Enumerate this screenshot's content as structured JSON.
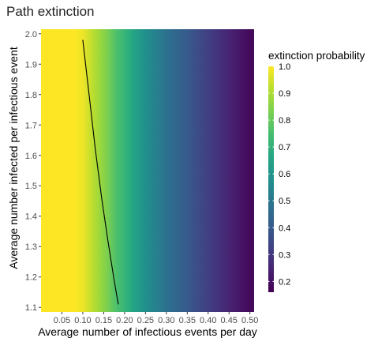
{
  "chart_data": {
    "type": "heatmap",
    "title": "Path extinction",
    "xlabel": "Average number of infectious events per day",
    "ylabel": "Average number infected per infectious event",
    "xlim": [
      0.0,
      0.51
    ],
    "ylim": [
      1.085,
      2.015
    ],
    "x_ticks": [
      "0.05",
      "0.10",
      "0.15",
      "0.20",
      "0.25",
      "0.30",
      "0.35",
      "0.40",
      "0.45",
      "0.50"
    ],
    "y_ticks": [
      "1.1",
      "1.2",
      "1.3",
      "1.4",
      "1.5",
      "1.6",
      "1.7",
      "1.8",
      "1.9",
      "2.0"
    ],
    "grid": false,
    "colorscale": "viridis",
    "value_profile": {
      "x": [
        0.0,
        0.08,
        0.1,
        0.12,
        0.14,
        0.16,
        0.18,
        0.2,
        0.22,
        0.25,
        0.3,
        0.35,
        0.4,
        0.45,
        0.5
      ],
      "value": [
        1.0,
        1.0,
        0.98,
        0.93,
        0.88,
        0.83,
        0.76,
        0.72,
        0.66,
        0.58,
        0.48,
        0.4,
        0.32,
        0.25,
        0.18
      ]
    },
    "contour_line": {
      "x": [
        0.1,
        0.115,
        0.13,
        0.145,
        0.16,
        0.175,
        0.185
      ],
      "y": [
        1.98,
        1.8,
        1.62,
        1.46,
        1.32,
        1.19,
        1.11
      ]
    },
    "legend": {
      "title": "extinction probability",
      "placement": "right",
      "ticks": [
        "1.0",
        "0.9",
        "0.8",
        "0.7",
        "0.6",
        "0.5",
        "0.4",
        "0.3",
        "0.2"
      ],
      "range": [
        0.16,
        1.0
      ]
    }
  }
}
